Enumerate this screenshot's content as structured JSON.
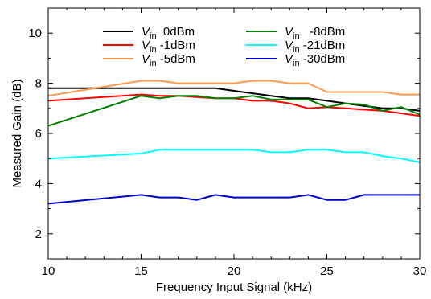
{
  "chart_data": {
    "type": "line",
    "xlabel": "Frequency Input Signal (kHz)",
    "ylabel": "Measured Gain (dB)",
    "xlim": [
      10,
      30
    ],
    "ylim": [
      1,
      11
    ],
    "xticks": [
      10,
      15,
      20,
      25,
      30
    ],
    "yticks": [
      2,
      4,
      6,
      8,
      10
    ],
    "grid": false,
    "legend_position": "top-center",
    "series": [
      {
        "name_main": "V",
        "name_sub": "in",
        "name_suffix": "  0dBm",
        "color": "#000000",
        "x": [
          10,
          15,
          16,
          17,
          18,
          19,
          20,
          21,
          22,
          23,
          24,
          25,
          26,
          27,
          28,
          29,
          30
        ],
        "y": [
          7.8,
          7.8,
          7.8,
          7.8,
          7.8,
          7.8,
          7.7,
          7.6,
          7.5,
          7.4,
          7.4,
          7.3,
          7.2,
          7.1,
          7.0,
          7.0,
          6.9
        ]
      },
      {
        "name_main": "V",
        "name_sub": "in",
        "name_suffix": " -1dBm",
        "color": "#ff0000",
        "x": [
          10,
          15,
          16,
          17,
          18,
          19,
          20,
          21,
          22,
          23,
          24,
          25,
          26,
          27,
          28,
          29,
          30
        ],
        "y": [
          7.3,
          7.55,
          7.5,
          7.5,
          7.45,
          7.4,
          7.4,
          7.3,
          7.3,
          7.2,
          7.0,
          7.05,
          7.0,
          6.95,
          6.9,
          6.8,
          6.7
        ]
      },
      {
        "name_main": "V",
        "name_sub": "in",
        "name_suffix": " -5dBm",
        "color": "#ff9a4d",
        "x": [
          10,
          15,
          16,
          17,
          18,
          19,
          20,
          21,
          22,
          23,
          24,
          25,
          26,
          27,
          28,
          29,
          30
        ],
        "y": [
          7.5,
          8.1,
          8.1,
          8.0,
          8.0,
          8.0,
          8.0,
          8.1,
          8.1,
          8.0,
          8.0,
          7.65,
          7.65,
          7.65,
          7.65,
          7.55,
          7.55
        ]
      },
      {
        "name_main": "V",
        "name_sub": "in",
        "name_suffix": "   -8dBm",
        "color": "#008000",
        "x": [
          10,
          15,
          16,
          17,
          18,
          19,
          20,
          21,
          22,
          23,
          24,
          25,
          26,
          27,
          28,
          29,
          30
        ],
        "y": [
          6.3,
          7.5,
          7.4,
          7.5,
          7.5,
          7.4,
          7.4,
          7.5,
          7.35,
          7.35,
          7.35,
          7.05,
          7.2,
          7.15,
          6.9,
          7.05,
          6.75
        ]
      },
      {
        "name_main": "V",
        "name_sub": "in",
        "name_suffix": " -21dBm",
        "color": "#00ffff",
        "x": [
          10,
          15,
          16,
          17,
          18,
          19,
          20,
          21,
          22,
          23,
          24,
          25,
          26,
          27,
          28,
          29,
          30
        ],
        "y": [
          5.0,
          5.2,
          5.35,
          5.35,
          5.35,
          5.35,
          5.35,
          5.35,
          5.25,
          5.25,
          5.35,
          5.35,
          5.25,
          5.25,
          5.1,
          5.0,
          4.85
        ]
      },
      {
        "name_main": "V",
        "name_sub": "in",
        "name_suffix": " -30dBm",
        "color": "#0000cc",
        "x": [
          10,
          15,
          16,
          17,
          18,
          19,
          20,
          21,
          22,
          23,
          24,
          25,
          26,
          27,
          28,
          29,
          30
        ],
        "y": [
          3.2,
          3.55,
          3.45,
          3.45,
          3.35,
          3.55,
          3.45,
          3.45,
          3.45,
          3.45,
          3.55,
          3.35,
          3.35,
          3.55,
          3.55,
          3.55,
          3.55
        ]
      }
    ]
  }
}
